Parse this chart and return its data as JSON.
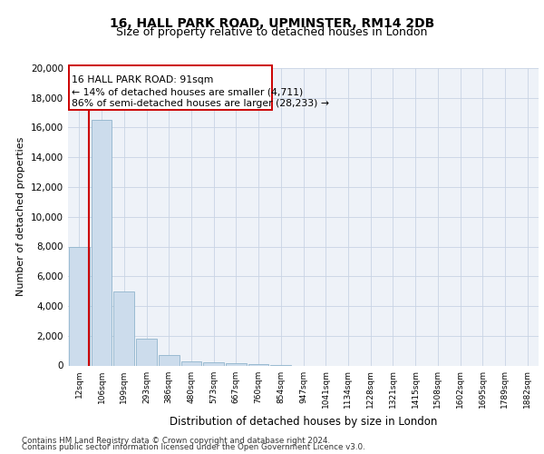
{
  "title1": "16, HALL PARK ROAD, UPMINSTER, RM14 2DB",
  "title2": "Size of property relative to detached houses in London",
  "xlabel": "Distribution of detached houses by size in London",
  "ylabel": "Number of detached properties",
  "footnote1": "Contains HM Land Registry data © Crown copyright and database right 2024.",
  "footnote2": "Contains public sector information licensed under the Open Government Licence v3.0.",
  "annotation_line1": "16 HALL PARK ROAD: 91sqm",
  "annotation_line2": "← 14% of detached houses are smaller (4,711)",
  "annotation_line3": "86% of semi-detached houses are larger (28,233) →",
  "bar_labels": [
    "12sqm",
    "106sqm",
    "199sqm",
    "293sqm",
    "386sqm",
    "480sqm",
    "573sqm",
    "667sqm",
    "760sqm",
    "854sqm",
    "947sqm",
    "1041sqm",
    "1134sqm",
    "1228sqm",
    "1321sqm",
    "1415sqm",
    "1508sqm",
    "1602sqm",
    "1695sqm",
    "1789sqm",
    "1882sqm"
  ],
  "bar_values": [
    8000,
    16500,
    5000,
    1800,
    700,
    300,
    200,
    150,
    100,
    50,
    0,
    0,
    0,
    0,
    0,
    0,
    0,
    0,
    0,
    0,
    0
  ],
  "bar_color": "#ccdcec",
  "bar_edge_color": "#90b4cc",
  "vline_color": "#cc0000",
  "vline_x": 0.43,
  "annotation_box_color": "#cc0000",
  "ylim": [
    0,
    20000
  ],
  "yticks": [
    0,
    2000,
    4000,
    6000,
    8000,
    10000,
    12000,
    14000,
    16000,
    18000,
    20000
  ],
  "grid_color": "#c8d4e4",
  "bg_color": "#eef2f8"
}
